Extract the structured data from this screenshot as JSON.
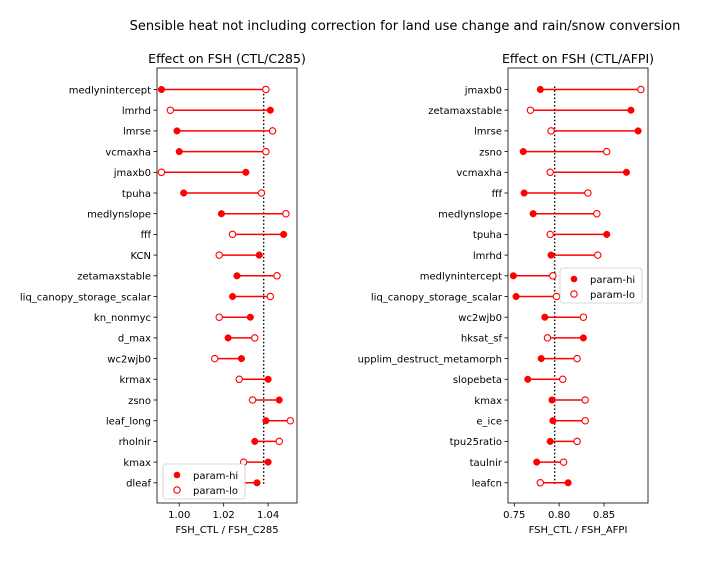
{
  "suptitle": "Sensible heat not including correction for land use change and rain/snow conversion",
  "colors": {
    "marker": "#ff0000",
    "line": "#ff0000",
    "reference": "#000000"
  },
  "chart_data": [
    {
      "type": "dumbbell",
      "title": "Effect on FSH (CTL/C285)",
      "xlabel": "FSH_CTL / FSH_C285",
      "reference_x": 1.038,
      "xlim": [
        0.99,
        1.053
      ],
      "xticks": [
        1.0,
        1.02,
        1.04
      ],
      "xtick_labels": [
        "1.00",
        "1.02",
        "1.04"
      ],
      "legend": {
        "loc": "lower-left",
        "entries": [
          "param-hi",
          "param-lo"
        ]
      },
      "categories": [
        "medlynintercept",
        "lmrhd",
        "lmrse",
        "vcmaxha",
        "jmaxb0",
        "tpuha",
        "medlynslope",
        "fff",
        "KCN",
        "zetamaxstable",
        "liq_canopy_storage_scalar",
        "kn_nonmyc",
        "d_max",
        "wc2wjb0",
        "krmax",
        "zsno",
        "leaf_long",
        "rholnir",
        "kmax",
        "dleaf"
      ],
      "series": [
        {
          "name": "param-hi",
          "style": "filled",
          "values": [
            0.992,
            1.041,
            0.999,
            1.0,
            1.03,
            1.002,
            1.019,
            1.047,
            1.036,
            1.026,
            1.024,
            1.032,
            1.022,
            1.028,
            1.04,
            1.045,
            1.039,
            1.034,
            1.04,
            1.035
          ]
        },
        {
          "name": "param-lo",
          "style": "open",
          "values": [
            1.039,
            0.996,
            1.042,
            1.039,
            0.992,
            1.037,
            1.048,
            1.024,
            1.018,
            1.044,
            1.041,
            1.018,
            1.034,
            1.016,
            1.027,
            1.033,
            1.05,
            1.045,
            1.029,
            1.003
          ]
        }
      ]
    },
    {
      "type": "dumbbell",
      "title": "Effect on FSH (CTL/AFPI)",
      "xlabel": "FSH_CTL / FSH_AFPI",
      "reference_x": 0.795,
      "xlim": [
        0.743,
        0.899
      ],
      "xticks": [
        0.75,
        0.8,
        0.85
      ],
      "xtick_labels": [
        "0.75",
        "0.80",
        "0.85"
      ],
      "legend": {
        "loc": "center-right",
        "entries": [
          "param-hi",
          "param-lo"
        ]
      },
      "categories": [
        "jmaxb0",
        "zetamaxstable",
        "lmrse",
        "zsno",
        "vcmaxha",
        "fff",
        "medlynslope",
        "tpuha",
        "lmrhd",
        "medlynintercept",
        "liq_canopy_storage_scalar",
        "wc2wjb0",
        "hksat_sf",
        "upplim_destruct_metamorph",
        "slopebeta",
        "kmax",
        "e_ice",
        "tpu25ratio",
        "taulnir",
        "leafcn"
      ],
      "series": [
        {
          "name": "param-hi",
          "style": "filled",
          "values": [
            0.779,
            0.88,
            0.888,
            0.76,
            0.875,
            0.761,
            0.771,
            0.853,
            0.791,
            0.749,
            0.752,
            0.784,
            0.827,
            0.78,
            0.765,
            0.792,
            0.793,
            0.79,
            0.775,
            0.81
          ]
        },
        {
          "name": "param-lo",
          "style": "open",
          "values": [
            0.891,
            0.768,
            0.791,
            0.853,
            0.79,
            0.832,
            0.842,
            0.79,
            0.843,
            0.793,
            0.797,
            0.827,
            0.787,
            0.82,
            0.804,
            0.829,
            0.829,
            0.82,
            0.805,
            0.779
          ]
        }
      ]
    }
  ]
}
